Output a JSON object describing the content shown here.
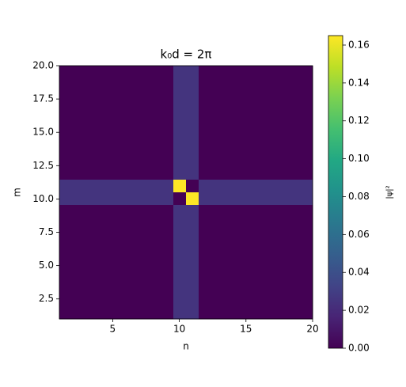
{
  "chart_data": {
    "type": "heatmap",
    "title": "k₀d = 2π",
    "x_label": "n",
    "y_label": "m",
    "colorbar_label": "|ψ|²",
    "colormap": "viridis",
    "xlim": [
      1,
      20
    ],
    "ylim": [
      1,
      20
    ],
    "xticks": [
      5,
      10,
      15,
      20
    ],
    "yticks": [
      2.5,
      {
        "value": 5,
        "label": "5.0"
      },
      7.5,
      {
        "value": 10,
        "label": "10.0"
      },
      12.5,
      {
        "value": 15,
        "label": "15.0"
      },
      17.5,
      {
        "value": 20,
        "label": "20.0"
      }
    ],
    "clim": [
      0,
      0.165
    ],
    "cticks": [
      {
        "value": 0,
        "label": "0.00"
      },
      {
        "value": 0.02,
        "label": "0.02"
      },
      {
        "value": 0.04,
        "label": "0.04"
      },
      {
        "value": 0.06,
        "label": "0.06"
      },
      {
        "value": 0.08,
        "label": "0.08"
      },
      {
        "value": 0.1,
        "label": "0.10"
      },
      {
        "value": 0.12,
        "label": "0.12"
      },
      {
        "value": 0.14,
        "label": "0.14"
      },
      {
        "value": 0.16,
        "label": "0.16"
      }
    ],
    "z": [
      [
        0,
        0,
        0,
        0,
        0,
        0,
        0,
        0,
        0,
        0.025,
        0.025,
        0,
        0,
        0,
        0,
        0,
        0,
        0,
        0,
        0
      ],
      [
        0,
        0,
        0,
        0,
        0,
        0,
        0,
        0,
        0,
        0.025,
        0.025,
        0,
        0,
        0,
        0,
        0,
        0,
        0,
        0,
        0
      ],
      [
        0,
        0,
        0,
        0,
        0,
        0,
        0,
        0,
        0,
        0.025,
        0.025,
        0,
        0,
        0,
        0,
        0,
        0,
        0,
        0,
        0
      ],
      [
        0,
        0,
        0,
        0,
        0,
        0,
        0,
        0,
        0,
        0.025,
        0.025,
        0,
        0,
        0,
        0,
        0,
        0,
        0,
        0,
        0
      ],
      [
        0,
        0,
        0,
        0,
        0,
        0,
        0,
        0,
        0,
        0.025,
        0.025,
        0,
        0,
        0,
        0,
        0,
        0,
        0,
        0,
        0
      ],
      [
        0,
        0,
        0,
        0,
        0,
        0,
        0,
        0,
        0,
        0.025,
        0.025,
        0,
        0,
        0,
        0,
        0,
        0,
        0,
        0,
        0
      ],
      [
        0,
        0,
        0,
        0,
        0,
        0,
        0,
        0,
        0,
        0.025,
        0.025,
        0,
        0,
        0,
        0,
        0,
        0,
        0,
        0,
        0
      ],
      [
        0,
        0,
        0,
        0,
        0,
        0,
        0,
        0,
        0,
        0.025,
        0.025,
        0,
        0,
        0,
        0,
        0,
        0,
        0,
        0,
        0
      ],
      [
        0,
        0,
        0,
        0,
        0,
        0,
        0,
        0,
        0,
        0.025,
        0.025,
        0,
        0,
        0,
        0,
        0,
        0,
        0,
        0,
        0
      ],
      [
        0.025,
        0.025,
        0.025,
        0.025,
        0.025,
        0.025,
        0.025,
        0.025,
        0.025,
        0.165,
        0,
        0.025,
        0.025,
        0.025,
        0.025,
        0.025,
        0.025,
        0.025,
        0.025,
        0.025
      ],
      [
        0.025,
        0.025,
        0.025,
        0.025,
        0.025,
        0.025,
        0.025,
        0.025,
        0.025,
        0,
        0.165,
        0.025,
        0.025,
        0.025,
        0.025,
        0.025,
        0.025,
        0.025,
        0.025,
        0.025
      ],
      [
        0,
        0,
        0,
        0,
        0,
        0,
        0,
        0,
        0,
        0.025,
        0.025,
        0,
        0,
        0,
        0,
        0,
        0,
        0,
        0,
        0
      ],
      [
        0,
        0,
        0,
        0,
        0,
        0,
        0,
        0,
        0,
        0.025,
        0.025,
        0,
        0,
        0,
        0,
        0,
        0,
        0,
        0,
        0
      ],
      [
        0,
        0,
        0,
        0,
        0,
        0,
        0,
        0,
        0,
        0.025,
        0.025,
        0,
        0,
        0,
        0,
        0,
        0,
        0,
        0,
        0
      ],
      [
        0,
        0,
        0,
        0,
        0,
        0,
        0,
        0,
        0,
        0.025,
        0.025,
        0,
        0,
        0,
        0,
        0,
        0,
        0,
        0,
        0
      ],
      [
        0,
        0,
        0,
        0,
        0,
        0,
        0,
        0,
        0,
        0.025,
        0.025,
        0,
        0,
        0,
        0,
        0,
        0,
        0,
        0,
        0
      ],
      [
        0,
        0,
        0,
        0,
        0,
        0,
        0,
        0,
        0,
        0.025,
        0.025,
        0,
        0,
        0,
        0,
        0,
        0,
        0,
        0,
        0
      ],
      [
        0,
        0,
        0,
        0,
        0,
        0,
        0,
        0,
        0,
        0.025,
        0.025,
        0,
        0,
        0,
        0,
        0,
        0,
        0,
        0,
        0
      ],
      [
        0,
        0,
        0,
        0,
        0,
        0,
        0,
        0,
        0,
        0.025,
        0.025,
        0,
        0,
        0,
        0,
        0,
        0,
        0,
        0,
        0
      ],
      [
        0,
        0,
        0,
        0,
        0,
        0,
        0,
        0,
        0,
        0.025,
        0.025,
        0,
        0,
        0,
        0,
        0,
        0,
        0,
        0,
        0
      ]
    ]
  }
}
